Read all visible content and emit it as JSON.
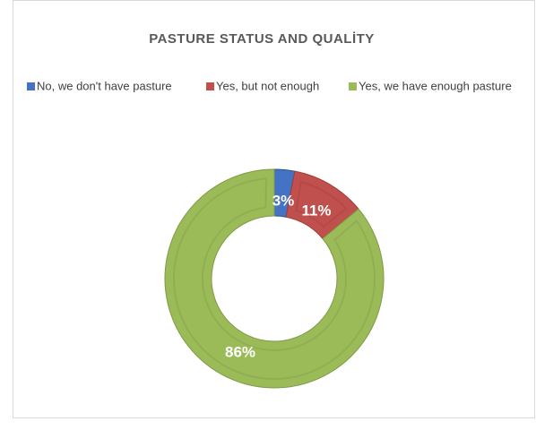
{
  "chart_data": {
    "type": "donut",
    "title": "PASTURE STATUS AND QUALİTY",
    "categories": [
      "No, we don't have pasture",
      "Yes, but not enough",
      "Yes, we have enough pasture"
    ],
    "values": [
      3,
      11,
      86
    ],
    "value_labels": [
      "3%",
      "11%",
      "86%"
    ],
    "colors": [
      "#4472c4",
      "#c0504d",
      "#9bbb59"
    ],
    "legend": "top"
  }
}
